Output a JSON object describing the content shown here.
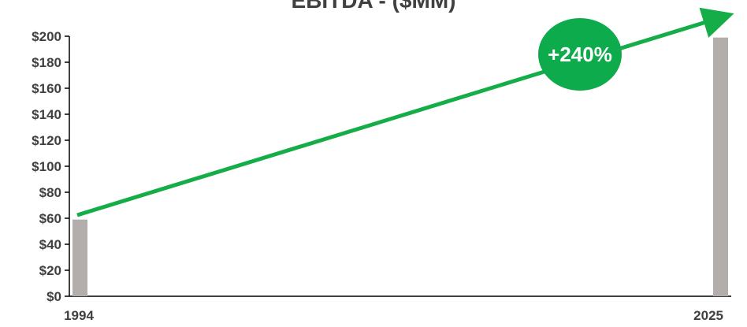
{
  "chart_data": {
    "type": "bar",
    "title": "EBITDA - ($MM)",
    "categories": [
      "1994",
      "2025"
    ],
    "values": [
      59,
      199
    ],
    "ylim": [
      0,
      200
    ],
    "yticks": [
      "$0",
      "$20",
      "$40",
      "$60",
      "$80",
      "$100",
      "$120",
      "$140",
      "$160",
      "$180",
      "$200"
    ],
    "ytick_values": [
      0,
      20,
      40,
      60,
      80,
      100,
      120,
      140,
      160,
      180,
      200
    ],
    "grid": false,
    "annotation": {
      "label": "+240%",
      "color": "#0dab4b"
    },
    "bar_color": "#b3aeab",
    "trend_color": "#15ad48"
  }
}
